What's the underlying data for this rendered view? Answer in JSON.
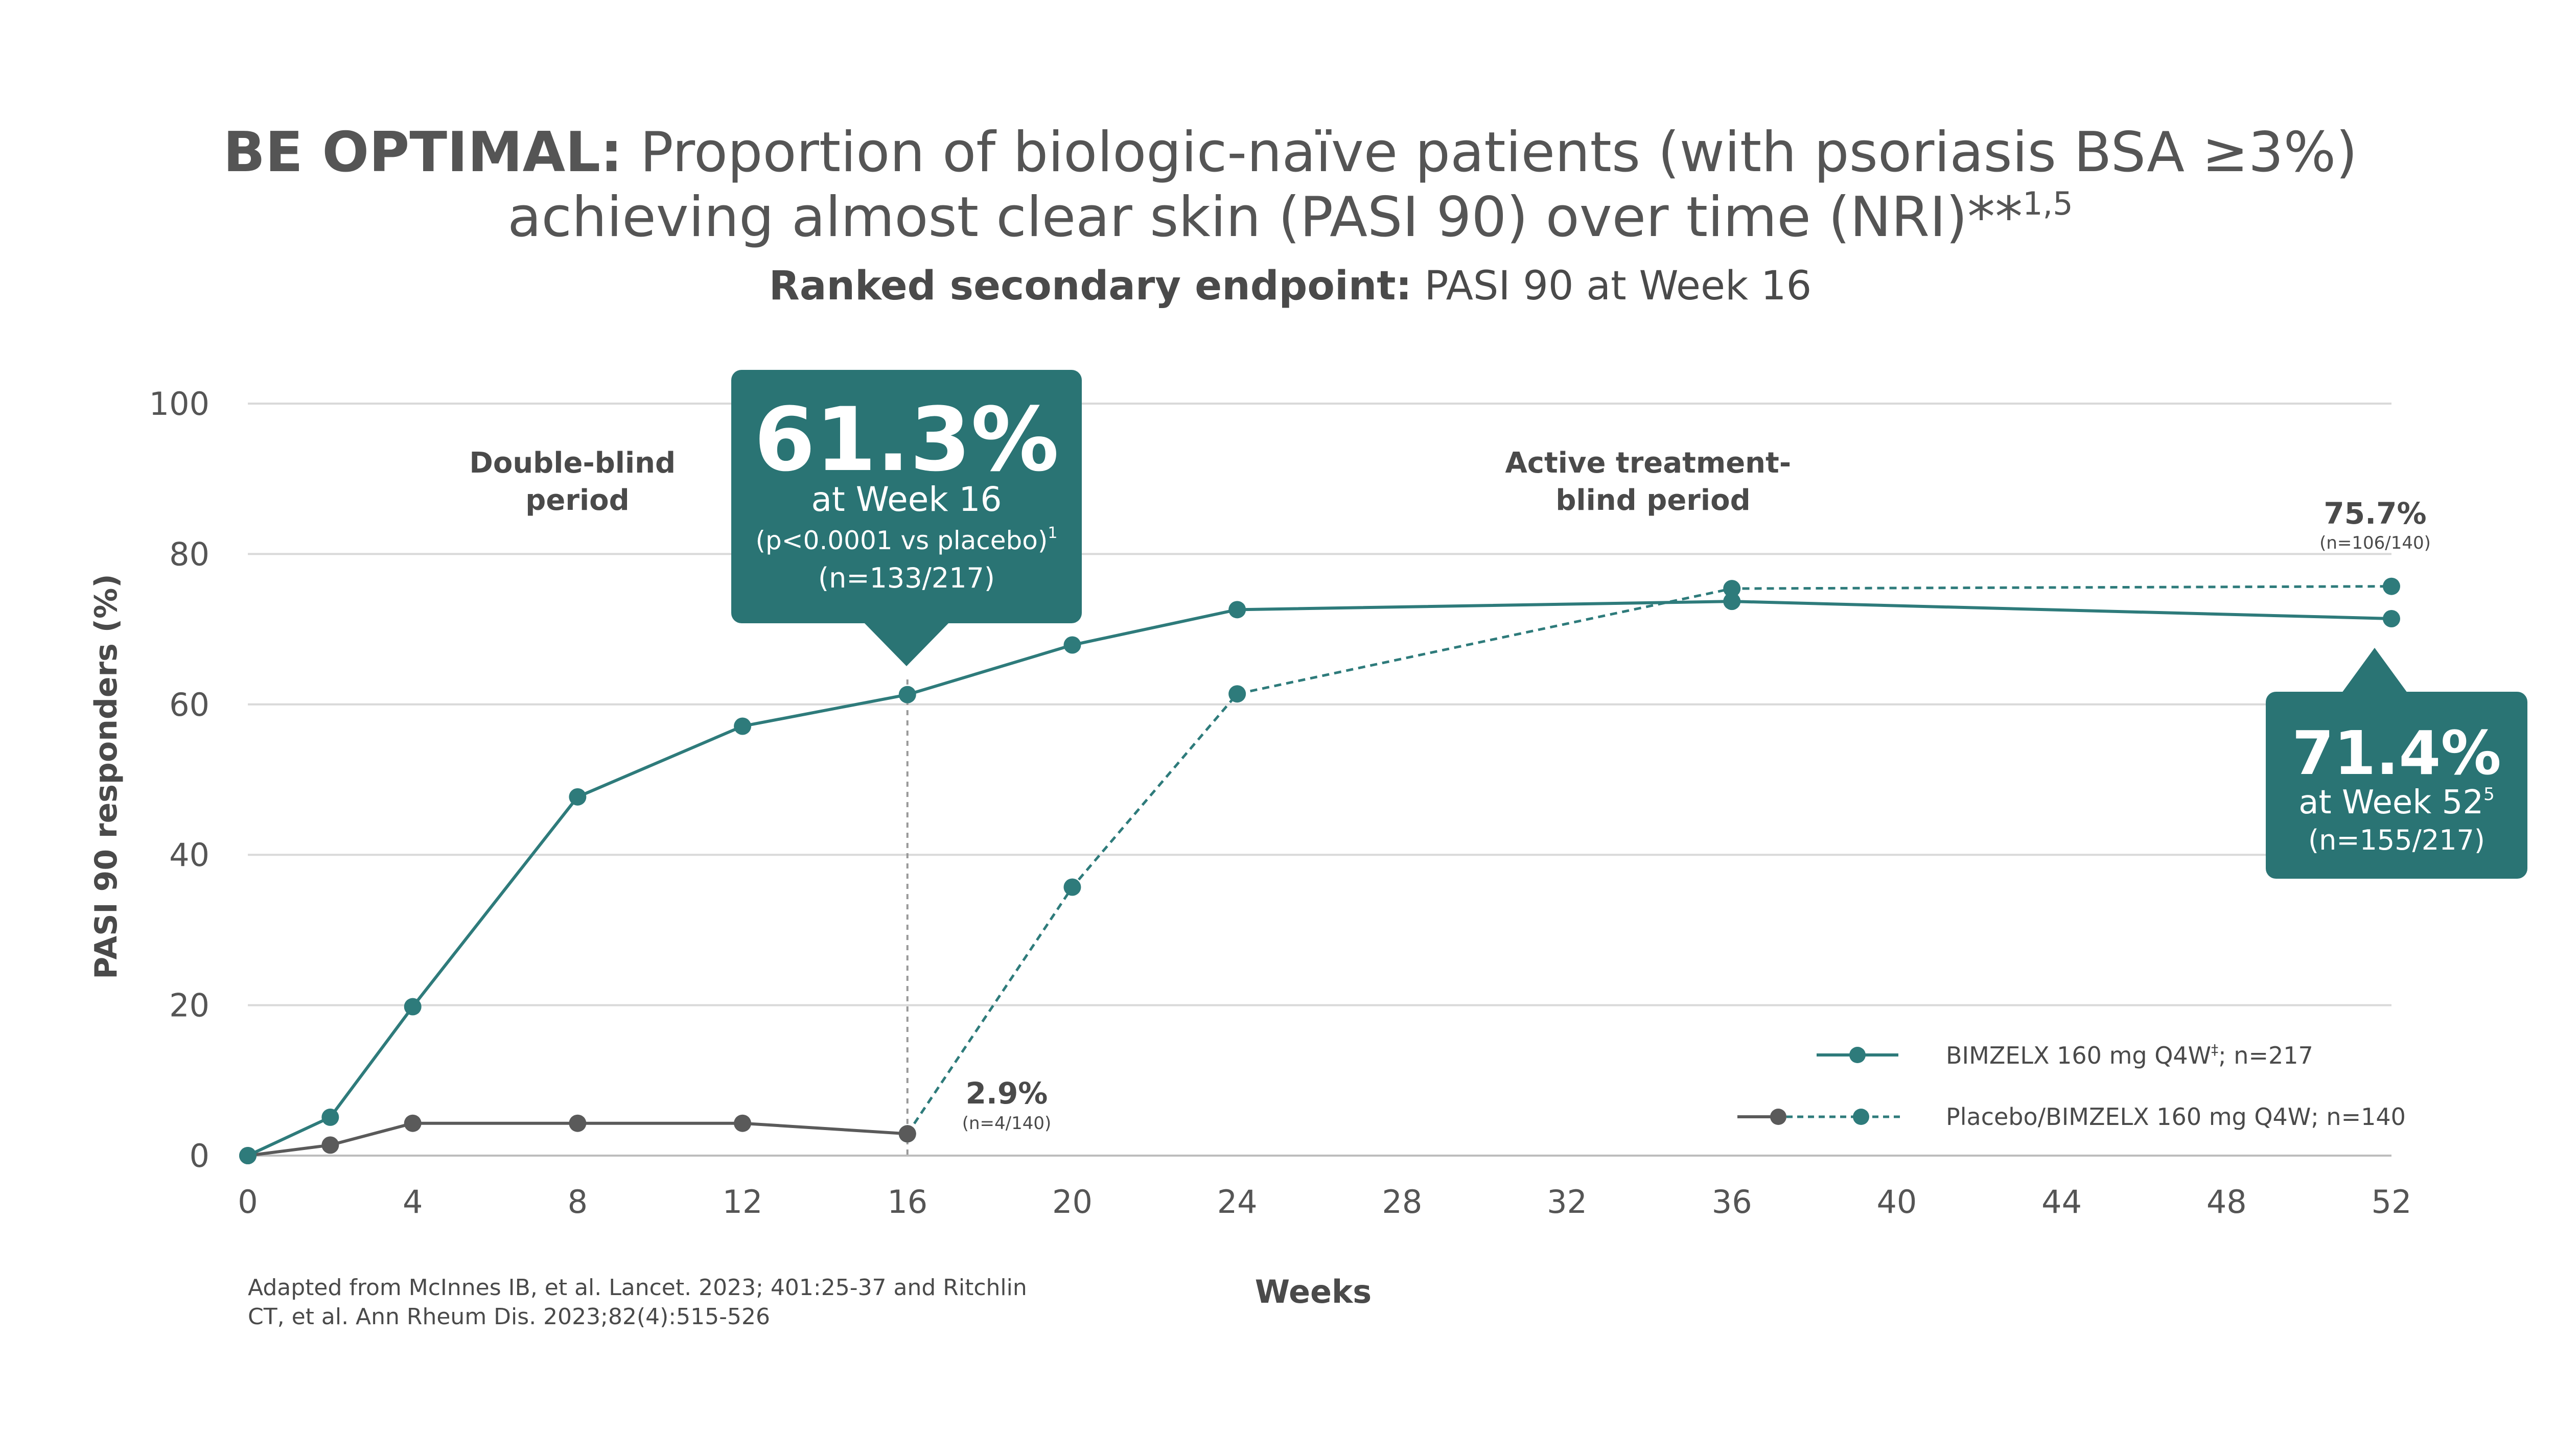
{
  "chart_data": {
    "type": "line",
    "title_bold": "BE OPTIMAL:",
    "title_rest": " Proportion of biologic-naïve patients (with psoriasis BSA ≥3%)",
    "title_line2": "achieving almost clear skin (PASI 90) over time (NRI)**",
    "title_sup": "1,5",
    "subtitle_bold": "Ranked secondary endpoint:",
    "subtitle_rest": " PASI 90 at Week 16",
    "xlabel": "Weeks",
    "ylabel": "PASI 90 responders (%)",
    "xlim": [
      0,
      52
    ],
    "ylim": [
      0,
      100
    ],
    "x_ticks": [
      "0",
      "4",
      "8",
      "12",
      "16",
      "20",
      "24",
      "28",
      "32",
      "36",
      "40",
      "44",
      "48",
      "52"
    ],
    "y_ticks": [
      "0",
      "20",
      "40",
      "60",
      "80",
      "100"
    ],
    "grid": "horizontal",
    "colors": {
      "teal": "#2e7b7b",
      "callout": "#2a7474",
      "grey": "#5a5a5a",
      "text": "#4a4a4a"
    },
    "series": [
      {
        "name": "BIMZELX 160 mg Q4W",
        "name_sup": "‡",
        "name_suffix": "; n=217",
        "style": "solid",
        "color": "#2e7b7b",
        "x": [
          0,
          2,
          4,
          8,
          12,
          16,
          20,
          24,
          36,
          52
        ],
        "y": [
          0,
          5.1,
          19.8,
          47.7,
          57.1,
          61.3,
          67.9,
          72.6,
          73.7,
          71.4
        ]
      },
      {
        "name": "Placebo/BIMZELX 160 mg Q4W; n=140",
        "part": "placebo",
        "style": "solid",
        "color": "#5a5a5a",
        "x": [
          0,
          2,
          4,
          8,
          12,
          16
        ],
        "y": [
          0,
          1.4,
          4.3,
          4.3,
          4.3,
          2.9
        ]
      },
      {
        "part": "switch",
        "style": "dashed",
        "color": "#2e7b7b",
        "x": [
          16,
          20,
          24,
          36,
          52
        ],
        "y": [
          2.9,
          35.7,
          61.4,
          75.4,
          75.7
        ]
      }
    ],
    "period_labels": [
      {
        "lines": [
          "Double-blind",
          "period"
        ]
      },
      {
        "lines": [
          "Active treatment-",
          "blind period"
        ]
      }
    ],
    "callout_week16": {
      "big": "61.3%",
      "line1": "at Week 16",
      "line2": "(p<0.0001 vs placebo)",
      "line2_sup": "1",
      "line3": "(n=133/217)"
    },
    "callout_week52": {
      "big": "71.4%",
      "line1": "at Week 52",
      "line1_sup": "5",
      "line2": "(n=155/217)"
    },
    "annotation_placebo16": {
      "pct": "2.9%",
      "n": "(n=4/140)"
    },
    "annotation_switch52": {
      "pct": "75.7%",
      "n": "(n=106/140)"
    },
    "footnote": [
      "Adapted from McInnes IB, et al. Lancet. 2023; 401:25-37 and Ritchlin",
      "CT, et al. Ann Rheum Dis. 2023;82(4):515-526"
    ]
  }
}
